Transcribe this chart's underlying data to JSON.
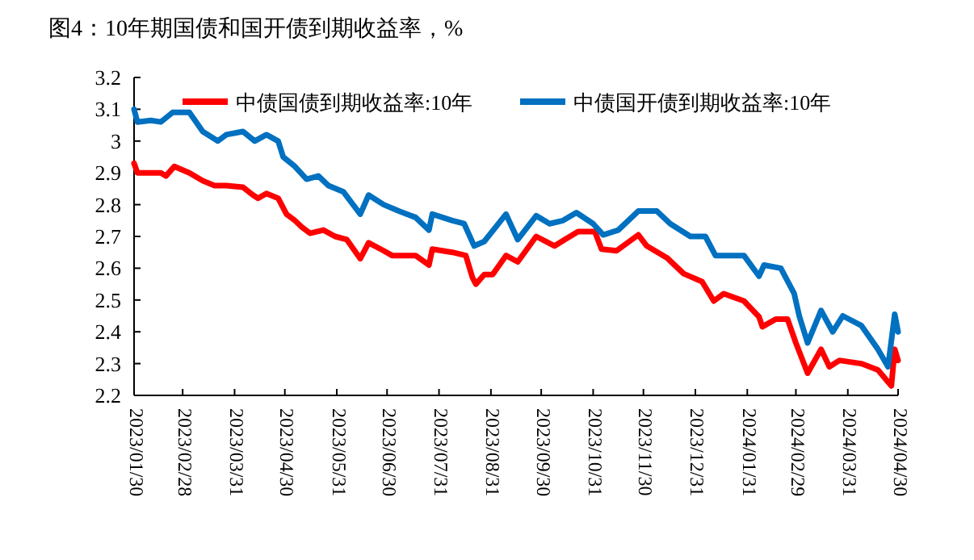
{
  "chart_data": {
    "type": "line",
    "title": "图4：10年期国债和国开债到期收益率，%",
    "xlim": [
      "2023-01-30",
      "2024-04-30"
    ],
    "xticks": [
      {
        "value": "2023-01-30",
        "label": "2023/01/30"
      },
      {
        "value": "2023-02-28",
        "label": "2023/02/28"
      },
      {
        "value": "2023-03-31",
        "label": "2023/03/31"
      },
      {
        "value": "2023-04-30",
        "label": "2023/04/30"
      },
      {
        "value": "2023-05-31",
        "label": "2023/05/31"
      },
      {
        "value": "2023-06-30",
        "label": "2023/06/30"
      },
      {
        "value": "2023-07-31",
        "label": "2023/07/31"
      },
      {
        "value": "2023-08-31",
        "label": "2023/08/31"
      },
      {
        "value": "2023-09-30",
        "label": "2023/09/30"
      },
      {
        "value": "2023-10-31",
        "label": "2023/10/31"
      },
      {
        "value": "2023-11-30",
        "label": "2023/11/30"
      },
      {
        "value": "2023-12-31",
        "label": "2023/12/31"
      },
      {
        "value": "2024-01-31",
        "label": "2024/01/31"
      },
      {
        "value": "2024-02-29",
        "label": "2024/02/29"
      },
      {
        "value": "2024-03-31",
        "label": "2024/03/31"
      },
      {
        "value": "2024-04-30",
        "label": "2024/04/30"
      }
    ],
    "ylim": [
      2.2,
      3.2
    ],
    "yticks": [
      2.2,
      2.3,
      2.4,
      2.5,
      2.6,
      2.7,
      2.8,
      2.9,
      3,
      3.1,
      3.2
    ],
    "grid": false,
    "legend": "top",
    "marker": "none",
    "line_style": "solid",
    "series": [
      {
        "name": "中债国债到期收益率:10年",
        "color": "#ff0000",
        "x": [
          "2023-01-30",
          "2023-02-01",
          "2023-02-15",
          "2023-02-18",
          "2023-02-23",
          "2023-03-04",
          "2023-03-12",
          "2023-03-19",
          "2023-03-26",
          "2023-04-05",
          "2023-04-11",
          "2023-04-14",
          "2023-04-19",
          "2023-04-26",
          "2023-05-01",
          "2023-05-06",
          "2023-05-10",
          "2023-05-15",
          "2023-05-23",
          "2023-05-30",
          "2023-06-06",
          "2023-06-14",
          "2023-06-19",
          "2023-06-28",
          "2023-07-03",
          "2023-07-17",
          "2023-07-25",
          "2023-07-27",
          "2023-08-08",
          "2023-08-16",
          "2023-08-20",
          "2023-08-22",
          "2023-08-27",
          "2023-08-30",
          "2023-09-01",
          "2023-09-09",
          "2023-09-16",
          "2023-09-27",
          "2023-10-08",
          "2023-10-14",
          "2023-10-22",
          "2023-11-01",
          "2023-11-05",
          "2023-11-14",
          "2023-11-27",
          "2023-12-02",
          "2023-12-14",
          "2023-12-24",
          "2024-01-04",
          "2024-01-11",
          "2024-01-17",
          "2024-01-29",
          "2024-02-07",
          "2024-02-09",
          "2024-02-17",
          "2024-02-24",
          "2024-02-29",
          "2024-03-07",
          "2024-03-15",
          "2024-03-20",
          "2024-03-26",
          "2024-04-08",
          "2024-04-18",
          "2024-04-26",
          "2024-04-28",
          "2024-04-30"
        ],
        "values": [
          2.93,
          2.9,
          2.9,
          2.89,
          2.92,
          2.9,
          2.875,
          2.86,
          2.86,
          2.855,
          2.83,
          2.82,
          2.835,
          2.82,
          2.77,
          2.75,
          2.73,
          2.71,
          2.72,
          2.7,
          2.69,
          2.63,
          2.68,
          2.655,
          2.64,
          2.64,
          2.61,
          2.66,
          2.65,
          2.64,
          2.57,
          2.55,
          2.58,
          2.58,
          2.58,
          2.64,
          2.62,
          2.7,
          2.67,
          2.69,
          2.715,
          2.715,
          2.66,
          2.655,
          2.705,
          2.67,
          2.633,
          2.583,
          2.558,
          2.497,
          2.52,
          2.497,
          2.447,
          2.416,
          2.44,
          2.44,
          2.365,
          2.27,
          2.345,
          2.29,
          2.31,
          2.3,
          2.28,
          2.23,
          2.345,
          2.31
        ]
      },
      {
        "name": "中债国开债到期收益率:10年",
        "color": "#0070c0",
        "x": [
          "2023-01-30",
          "2023-02-01",
          "2023-02-09",
          "2023-02-15",
          "2023-02-22",
          "2023-03-04",
          "2023-03-12",
          "2023-03-21",
          "2023-03-26",
          "2023-04-05",
          "2023-04-12",
          "2023-04-19",
          "2023-04-26",
          "2023-04-29",
          "2023-05-06",
          "2023-05-13",
          "2023-05-20",
          "2023-05-26",
          "2023-06-04",
          "2023-06-14",
          "2023-06-19",
          "2023-06-28",
          "2023-07-07",
          "2023-07-17",
          "2023-07-25",
          "2023-07-27",
          "2023-08-08",
          "2023-08-15",
          "2023-08-21",
          "2023-08-27",
          "2023-09-09",
          "2023-09-16",
          "2023-09-27",
          "2023-10-05",
          "2023-10-13",
          "2023-10-21",
          "2023-10-31",
          "2023-11-06",
          "2023-11-15",
          "2023-11-27",
          "2023-12-08",
          "2023-12-16",
          "2023-12-28",
          "2024-01-06",
          "2024-01-12",
          "2024-01-29",
          "2024-02-07",
          "2024-02-10",
          "2024-02-20",
          "2024-02-28",
          "2024-03-02",
          "2024-03-07",
          "2024-03-15",
          "2024-03-22",
          "2024-03-28",
          "2024-04-08",
          "2024-04-18",
          "2024-04-24",
          "2024-04-28",
          "2024-04-30"
        ],
        "values": [
          3.1,
          3.06,
          3.065,
          3.06,
          3.09,
          3.09,
          3.03,
          3.0,
          3.02,
          3.03,
          3.0,
          3.02,
          3.0,
          2.95,
          2.92,
          2.88,
          2.89,
          2.86,
          2.84,
          2.77,
          2.83,
          2.8,
          2.78,
          2.76,
          2.72,
          2.77,
          2.75,
          2.74,
          2.67,
          2.684,
          2.77,
          2.69,
          2.765,
          2.74,
          2.75,
          2.775,
          2.74,
          2.705,
          2.72,
          2.78,
          2.78,
          2.74,
          2.7,
          2.7,
          2.64,
          2.64,
          2.575,
          2.61,
          2.6,
          2.52,
          2.45,
          2.365,
          2.467,
          2.4,
          2.45,
          2.42,
          2.345,
          2.29,
          2.455,
          2.4
        ]
      }
    ]
  }
}
